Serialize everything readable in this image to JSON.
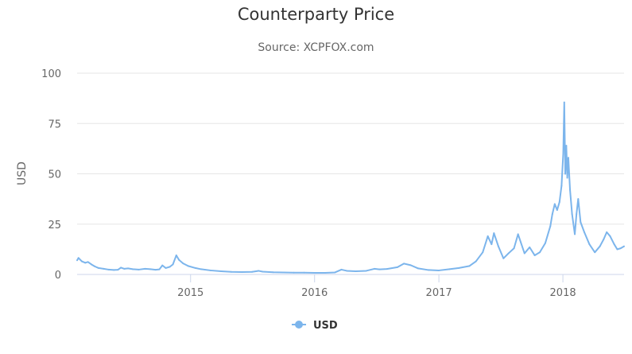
{
  "chart_data": {
    "type": "line",
    "title": "Counterparty Price",
    "subtitle": "Source: XCPFOX.com",
    "ylabel": "USD",
    "xlabel": "",
    "ylim": [
      0,
      100
    ],
    "yticks": [
      0,
      25,
      50,
      75,
      100
    ],
    "xlim": [
      "2014-02-01",
      "2018-06-30"
    ],
    "xticks": [
      {
        "date": "2015-01-01",
        "label": "2015"
      },
      {
        "date": "2016-01-01",
        "label": "2016"
      },
      {
        "date": "2017-01-01",
        "label": "2017"
      },
      {
        "date": "2018-01-01",
        "label": "2018"
      }
    ],
    "grid": true,
    "legend_position": "bottom-center",
    "colors": {
      "series": "#7cb5ec",
      "grid": "#e6e6e6",
      "axis": "#ccd6eb"
    },
    "series": [
      {
        "name": "USD",
        "color": "#7cb5ec",
        "points": [
          [
            "2014-02-01",
            7.0
          ],
          [
            "2014-02-05",
            8.2
          ],
          [
            "2014-02-15",
            6.5
          ],
          [
            "2014-02-25",
            5.8
          ],
          [
            "2014-03-05",
            6.2
          ],
          [
            "2014-03-15",
            5.0
          ],
          [
            "2014-03-25",
            4.0
          ],
          [
            "2014-04-05",
            3.2
          ],
          [
            "2014-04-20",
            2.8
          ],
          [
            "2014-05-05",
            2.4
          ],
          [
            "2014-05-20",
            2.2
          ],
          [
            "2014-06-01",
            2.3
          ],
          [
            "2014-06-10",
            3.4
          ],
          [
            "2014-06-20",
            2.8
          ],
          [
            "2014-07-01",
            3.0
          ],
          [
            "2014-07-15",
            2.6
          ],
          [
            "2014-08-01",
            2.4
          ],
          [
            "2014-08-20",
            2.8
          ],
          [
            "2014-09-05",
            2.6
          ],
          [
            "2014-09-20",
            2.3
          ],
          [
            "2014-10-01",
            2.5
          ],
          [
            "2014-10-10",
            4.5
          ],
          [
            "2014-10-20",
            3.2
          ],
          [
            "2014-11-01",
            3.8
          ],
          [
            "2014-11-10",
            5.0
          ],
          [
            "2014-11-20",
            9.5
          ],
          [
            "2014-11-28",
            7.2
          ],
          [
            "2014-12-10",
            5.5
          ],
          [
            "2014-12-25",
            4.2
          ],
          [
            "2015-01-15",
            3.2
          ],
          [
            "2015-02-01",
            2.6
          ],
          [
            "2015-03-01",
            2.0
          ],
          [
            "2015-04-01",
            1.6
          ],
          [
            "2015-05-01",
            1.3
          ],
          [
            "2015-06-01",
            1.2
          ],
          [
            "2015-07-01",
            1.3
          ],
          [
            "2015-07-20",
            1.8
          ],
          [
            "2015-08-01",
            1.4
          ],
          [
            "2015-09-01",
            1.1
          ],
          [
            "2015-10-01",
            1.0
          ],
          [
            "2015-11-01",
            0.9
          ],
          [
            "2015-12-01",
            0.9
          ],
          [
            "2016-01-01",
            0.8
          ],
          [
            "2016-02-01",
            0.8
          ],
          [
            "2016-03-01",
            1.0
          ],
          [
            "2016-03-20",
            2.4
          ],
          [
            "2016-04-05",
            1.8
          ],
          [
            "2016-05-01",
            1.6
          ],
          [
            "2016-06-01",
            1.8
          ],
          [
            "2016-06-25",
            2.8
          ],
          [
            "2016-07-10",
            2.5
          ],
          [
            "2016-08-01",
            2.7
          ],
          [
            "2016-09-01",
            3.6
          ],
          [
            "2016-09-20",
            5.4
          ],
          [
            "2016-10-10",
            4.6
          ],
          [
            "2016-11-01",
            3.0
          ],
          [
            "2016-12-01",
            2.2
          ],
          [
            "2017-01-01",
            2.0
          ],
          [
            "2017-02-01",
            2.6
          ],
          [
            "2017-03-01",
            3.2
          ],
          [
            "2017-04-01",
            4.2
          ],
          [
            "2017-04-20",
            6.5
          ],
          [
            "2017-05-10",
            11.0
          ],
          [
            "2017-05-25",
            19.0
          ],
          [
            "2017-06-05",
            15.0
          ],
          [
            "2017-06-12",
            20.5
          ],
          [
            "2017-06-25",
            14.0
          ],
          [
            "2017-07-10",
            8.0
          ],
          [
            "2017-07-25",
            10.5
          ],
          [
            "2017-08-10",
            13.0
          ],
          [
            "2017-08-22",
            20.0
          ],
          [
            "2017-08-30",
            16.0
          ],
          [
            "2017-09-10",
            10.5
          ],
          [
            "2017-09-25",
            13.5
          ],
          [
            "2017-10-10",
            9.5
          ],
          [
            "2017-10-25",
            11.0
          ],
          [
            "2017-11-10",
            15.5
          ],
          [
            "2017-11-25",
            24.0
          ],
          [
            "2017-12-01",
            30.0
          ],
          [
            "2017-12-08",
            35.0
          ],
          [
            "2017-12-15",
            32.0
          ],
          [
            "2017-12-22",
            36.0
          ],
          [
            "2017-12-28",
            44.0
          ],
          [
            "2018-01-02",
            60.0
          ],
          [
            "2018-01-05",
            85.5
          ],
          [
            "2018-01-08",
            50.0
          ],
          [
            "2018-01-11",
            64.0
          ],
          [
            "2018-01-14",
            48.0
          ],
          [
            "2018-01-17",
            58.0
          ],
          [
            "2018-01-22",
            42.0
          ],
          [
            "2018-01-28",
            30.0
          ],
          [
            "2018-02-05",
            20.0
          ],
          [
            "2018-02-10",
            30.0
          ],
          [
            "2018-02-15",
            37.5
          ],
          [
            "2018-02-22",
            26.0
          ],
          [
            "2018-03-05",
            21.0
          ],
          [
            "2018-03-20",
            15.0
          ],
          [
            "2018-04-05",
            11.0
          ],
          [
            "2018-04-20",
            14.0
          ],
          [
            "2018-05-01",
            17.5
          ],
          [
            "2018-05-10",
            21.0
          ],
          [
            "2018-05-20",
            19.0
          ],
          [
            "2018-06-01",
            15.0
          ],
          [
            "2018-06-10",
            12.5
          ],
          [
            "2018-06-20",
            13.0
          ],
          [
            "2018-06-30",
            14.0
          ]
        ]
      }
    ]
  }
}
